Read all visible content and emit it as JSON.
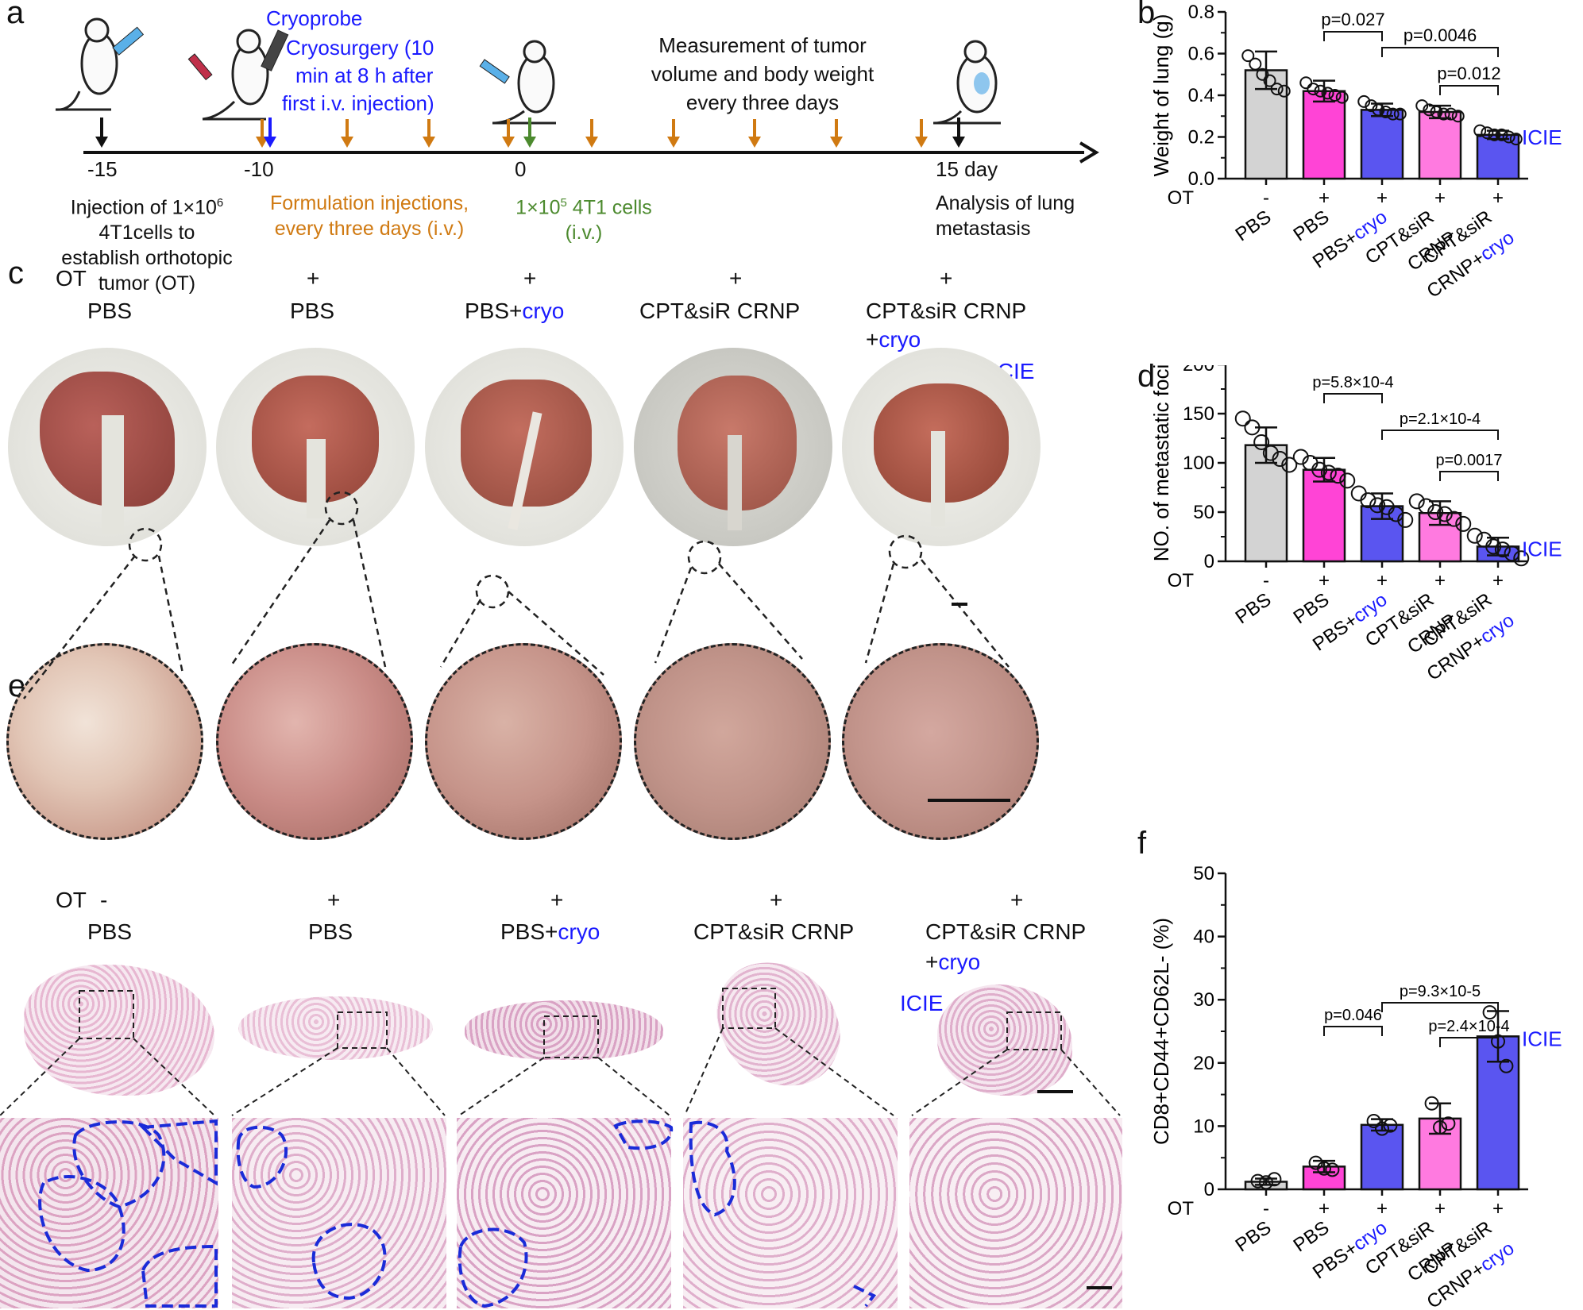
{
  "colors": {
    "gray": "#d3d3d3",
    "pbs": "#ff44d6",
    "cryo": "#5a55f0",
    "crnp": "#ff7ae0",
    "icie": "#5a55f0",
    "blue_text": "#1a1aff",
    "orange": "#d07a12",
    "green": "#4c8a2e",
    "black": "#111111"
  },
  "panel_labels": {
    "a": "a",
    "b": "b",
    "c": "c",
    "d": "d",
    "e": "e",
    "f": "f"
  },
  "panel_a": {
    "cryoprobe": "Cryoprobe",
    "cryosurgery": [
      "Cryosurgery (10",
      "min at 8 h after",
      "first i.v. injection)"
    ],
    "measurement": [
      "Measurement of tumor",
      "volume and body weight",
      "every three days"
    ],
    "ticks": [
      "-15",
      "-10",
      "0",
      "15 day"
    ],
    "injection_text": [
      "Injection of 1×10",
      "4T1cells to",
      "establish orthotopic",
      "tumor (OT)"
    ],
    "injection_sup": "6",
    "formulation_text": [
      "Formulation injections,",
      "every three days (i.v.)"
    ],
    "cells_text_main": "1×10",
    "cells_text_sup": "5",
    "cells_text_rest": " 4T1 cells",
    "cells_text_iv": "(i.v.)",
    "analysis_text": [
      "Analysis of lung",
      "metastasis"
    ]
  },
  "group_labels": {
    "ot": "OT",
    "ot_values": [
      "-",
      "+",
      "+",
      "+",
      "+"
    ],
    "pbs": "PBS",
    "pbs_cryo_a": "PBS+",
    "cryo": "cryo",
    "crnp_a": "CPT&siR",
    "crnp_b": "CRNP",
    "crnp_cryo_b": "CRNP+",
    "crnp_full": "CPT&siR CRNP",
    "plus_cryo": "+",
    "icie": "ICIE"
  },
  "chart_data": [
    {
      "panel": "b",
      "type": "bar",
      "ylabel": "Weight of lung (g)",
      "ylim": [
        0,
        0.8
      ],
      "yticks": [
        "0.0",
        "0.2",
        "0.4",
        "0.6",
        "0.8"
      ],
      "categories": [
        "PBS",
        "PBS",
        "PBS+cryo",
        "CPT&siR CRNP",
        "CPT&siR CRNP+cryo"
      ],
      "values": [
        0.52,
        0.42,
        0.33,
        0.32,
        0.21
      ],
      "errors": [
        0.09,
        0.05,
        0.03,
        0.03,
        0.02
      ],
      "points": [
        [
          0.59,
          0.55,
          0.5,
          0.47,
          0.43,
          0.42
        ],
        [
          0.46,
          0.43,
          0.42,
          0.41,
          0.4,
          0.39
        ],
        [
          0.37,
          0.35,
          0.33,
          0.32,
          0.31,
          0.31
        ],
        [
          0.35,
          0.33,
          0.32,
          0.31,
          0.31,
          0.3
        ],
        [
          0.23,
          0.22,
          0.21,
          0.21,
          0.2,
          0.19
        ]
      ],
      "comparisons": [
        {
          "from": 1,
          "to": 2,
          "label": "p=0.027"
        },
        {
          "from": 2,
          "to": 4,
          "label": "p=0.0046"
        },
        {
          "from": 3,
          "to": 4,
          "label": "p=0.012"
        }
      ]
    },
    {
      "panel": "d",
      "type": "bar",
      "ylabel": "NO. of metastatic foci",
      "ylim": [
        0,
        200
      ],
      "yticks": [
        "0",
        "50",
        "100",
        "150",
        "200"
      ],
      "categories": [
        "PBS",
        "PBS",
        "PBS+cryo",
        "CPT&siR CRNP",
        "CPT&siR CRNP+cryo"
      ],
      "values": [
        118,
        93,
        56,
        49,
        15
      ],
      "errors": [
        18,
        12,
        13,
        12,
        9
      ],
      "points": [
        [
          145,
          136,
          121,
          110,
          104,
          98
        ],
        [
          106,
          100,
          93,
          90,
          87,
          82
        ],
        [
          69,
          62,
          57,
          55,
          48,
          42
        ],
        [
          61,
          56,
          50,
          48,
          43,
          38
        ],
        [
          26,
          22,
          15,
          12,
          8,
          3
        ]
      ],
      "comparisons": [
        {
          "from": 1,
          "to": 2,
          "label": "p=5.8×10-4"
        },
        {
          "from": 2,
          "to": 4,
          "label": "p=2.1×10-4"
        },
        {
          "from": 3,
          "to": 4,
          "label": "p=0.0017"
        }
      ]
    },
    {
      "panel": "f",
      "type": "bar",
      "ylabel": "CD8+CD44+CD62L- (%)",
      "ylim": [
        0,
        50
      ],
      "yticks": [
        "0",
        "10",
        "20",
        "30",
        "40",
        "50"
      ],
      "categories": [
        "PBS",
        "PBS",
        "PBS+cryo",
        "CPT&siR CRNP",
        "CPT&siR CRNP+cryo"
      ],
      "values": [
        1.2,
        3.6,
        10.2,
        11.2,
        24.2
      ],
      "errors": [
        0.5,
        0.9,
        0.9,
        2.4,
        4.0
      ],
      "points": [
        [
          1.3,
          1.1,
          1.6
        ],
        [
          4.2,
          3.3,
          3.1
        ],
        [
          10.8,
          9.6,
          10.1
        ],
        [
          13.6,
          9.8,
          10.4
        ],
        [
          28.0,
          23.4,
          19.5
        ]
      ],
      "comparisons": [
        {
          "from": 1,
          "to": 2,
          "label": "p=0.046"
        },
        {
          "from": 2,
          "to": 4,
          "label": "p=9.3×10-5"
        },
        {
          "from": 3,
          "to": 4,
          "label": "p=2.4×10-4"
        }
      ]
    }
  ]
}
